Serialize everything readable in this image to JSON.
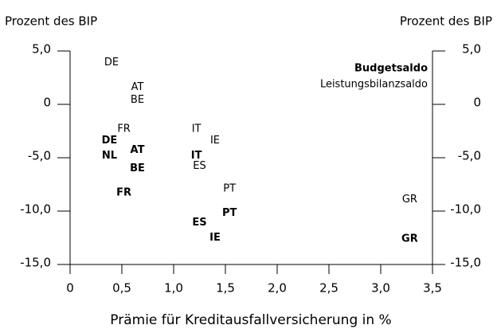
{
  "chart_data": {
    "type": "scatter",
    "y_label": "Prozent des BIP",
    "y2_label": "Prozent des BIP",
    "x_label": "Prämie für Kreditausfallversicherung in %",
    "xlim": [
      0,
      3.5
    ],
    "xticks": [
      0,
      {
        "value": 0.5,
        "label": "0,5"
      },
      {
        "value": 1,
        "label": "1,0"
      },
      {
        "value": 1.5,
        "label": "1,5"
      },
      {
        "value": 2,
        "label": "2,0"
      },
      {
        "value": 2.5,
        "label": "2,5"
      },
      {
        "value": 3,
        "label": "3,0"
      },
      {
        "value": 3.5,
        "label": "3,5"
      }
    ],
    "ylim": [
      -15,
      5
    ],
    "yticks": [
      {
        "value": 5,
        "label": "5,0"
      },
      0,
      {
        "value": -5,
        "label": "-5,0"
      },
      {
        "value": -10,
        "label": "-10,0"
      },
      {
        "value": -15,
        "label": "-15,0"
      }
    ],
    "y2lim": [
      -15,
      5
    ],
    "y2ticks": [
      {
        "value": 5,
        "label": "5,0"
      },
      0,
      {
        "value": -5,
        "label": "-5,0"
      },
      {
        "value": -10,
        "label": "-10,0"
      },
      {
        "value": -15,
        "label": "-15,0"
      }
    ],
    "legend": "upper right",
    "series": [
      {
        "name": "Budgetsaldo",
        "color": "#000000",
        "bold": true,
        "labels": [
          "DE",
          "NL",
          "AT",
          "BE",
          "FR",
          "IT",
          "ES",
          "PT",
          "IE",
          "GR"
        ],
        "x": [
          0.38,
          0.38,
          0.65,
          0.65,
          0.52,
          1.22,
          1.25,
          1.54,
          1.4,
          3.28
        ],
        "values": [
          -3.4,
          -4.8,
          -4.3,
          -6.0,
          -8.3,
          -4.8,
          -11.1,
          -10.2,
          -12.5,
          -12.6
        ]
      },
      {
        "name": "Leistungsbilanzsaldo",
        "color": "#000000",
        "bold": false,
        "labels": [
          "DE",
          "AT",
          "BE",
          "FR",
          "IT",
          "IE",
          "ES",
          "PT",
          "GR"
        ],
        "x": [
          0.4,
          0.65,
          0.65,
          0.52,
          1.22,
          1.4,
          1.25,
          1.54,
          3.28
        ],
        "values": [
          3.9,
          1.6,
          0.4,
          -2.3,
          -2.3,
          -3.4,
          -5.8,
          -7.9,
          -8.9
        ]
      }
    ]
  }
}
